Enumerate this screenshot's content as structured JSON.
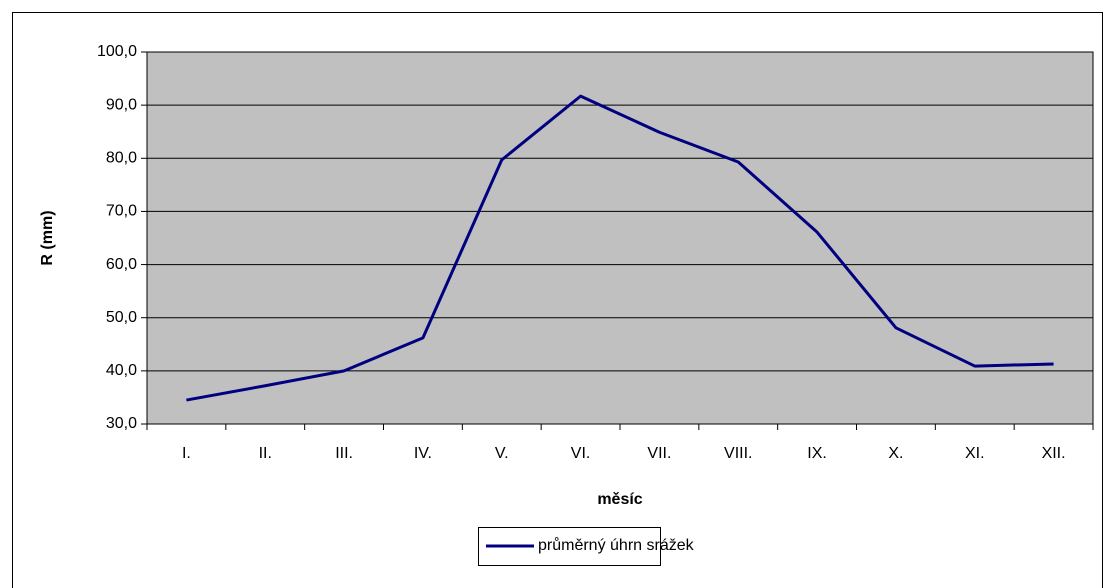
{
  "chart_data": {
    "type": "line",
    "x_label": "měsíc",
    "y_label": "R (mm)",
    "categories": [
      "I.",
      "II.",
      "III.",
      "IV.",
      "V.",
      "VI.",
      "VII.",
      "VIII.",
      "IX.",
      "X.",
      "XI.",
      "XII."
    ],
    "series": [
      {
        "name": "průměrný úhrn srážek",
        "color": "#000080",
        "values": [
          34.5,
          37.2,
          40.0,
          46.2,
          79.7,
          91.7,
          84.9,
          79.3,
          66.1,
          48.1,
          40.9,
          41.3
        ]
      }
    ],
    "ylim": [
      30,
      100
    ],
    "yticks": [
      {
        "value": 30,
        "label": "30,0"
      },
      {
        "value": 40,
        "label": "40,0"
      },
      {
        "value": 50,
        "label": "50,0"
      },
      {
        "value": 60,
        "label": "60,0"
      },
      {
        "value": 70,
        "label": "70,0"
      },
      {
        "value": 80,
        "label": "80,0"
      },
      {
        "value": 90,
        "label": "90,0"
      },
      {
        "value": 100,
        "label": "100,0"
      }
    ],
    "grid": true,
    "plot_background": "#c0c0c0",
    "legend": "bottom"
  }
}
